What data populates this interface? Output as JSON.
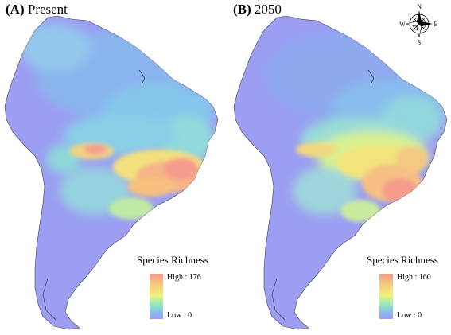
{
  "panels": [
    {
      "letter": "(A)",
      "title": "Present",
      "legend": {
        "title": "Species Richness",
        "high": "High : 176",
        "low": "Low : 0"
      }
    },
    {
      "letter": "(B)",
      "title": "2050",
      "legend": {
        "title": "Species Richness",
        "high": "High : 160",
        "low": "Low : 0"
      }
    }
  ],
  "compass": {
    "n": "N",
    "s": "S",
    "e": "E",
    "w": "W"
  },
  "colors": {
    "low": "#9b9ef2",
    "mid_low": "#8ab4ee",
    "mid": "#eef27b",
    "mid_high": "#f7d07a",
    "high": "#f59c8c"
  }
}
